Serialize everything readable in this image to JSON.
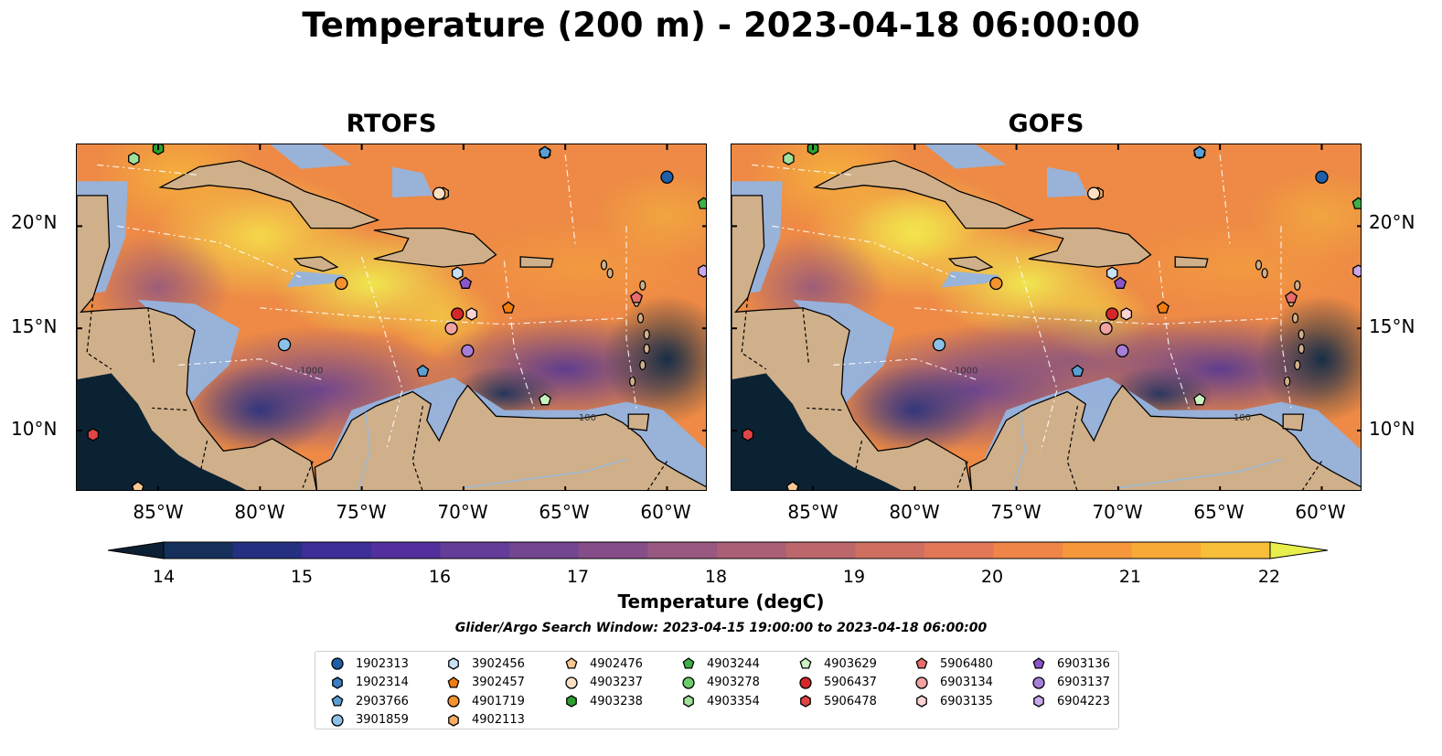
{
  "title": "Temperature (200 m) - 2023-04-18 06:00:00",
  "panels": [
    {
      "id": "rtofs",
      "title": "RTOFS"
    },
    {
      "id": "gofs",
      "title": "GOFS"
    }
  ],
  "lon_ticks": [
    "85°W",
    "80°W",
    "75°W",
    "70°W",
    "65°W",
    "60°W"
  ],
  "lat_ticks": [
    "20°N",
    "15°N",
    "10°N"
  ],
  "map_extent": {
    "lon": [
      -89,
      -58
    ],
    "lat": [
      7,
      24
    ]
  },
  "colorbar": {
    "label": "Temperature (degC)",
    "ticks": [
      "14",
      "15",
      "16",
      "17",
      "18",
      "19",
      "20",
      "21",
      "22"
    ],
    "range": [
      14,
      22
    ],
    "step": 0.5,
    "extend": "both",
    "colors": [
      "#0c1f33",
      "#16305c",
      "#253080",
      "#3c2f98",
      "#522f9c",
      "#633d98",
      "#744590",
      "#864e88",
      "#98577f",
      "#aa5f76",
      "#bc676c",
      "#cf6f62",
      "#e27758",
      "#ef8548",
      "#f6973c",
      "#f8aa37",
      "#f7be3a",
      "#f3d743",
      "#e8ef4c"
    ]
  },
  "search_window": "Glider/Argo Search Window: 2023-04-15 19:00:00 to 2023-04-18 06:00:00",
  "contour_labels": [
    "-1000",
    "-100"
  ],
  "legend": [
    {
      "id": "1902313",
      "marker": "circle",
      "color": "#1f5fa8"
    },
    {
      "id": "1902314",
      "marker": "hexagon",
      "color": "#3b7fc4"
    },
    {
      "id": "2903766",
      "marker": "pentagon",
      "color": "#5a9fd4"
    },
    {
      "id": "3901859",
      "marker": "circle",
      "color": "#8cc2ea"
    },
    {
      "id": "3902456",
      "marker": "hexagon",
      "color": "#c6e2f6"
    },
    {
      "id": "3902457",
      "marker": "pentagon",
      "color": "#f07d10"
    },
    {
      "id": "4901719",
      "marker": "circle",
      "color": "#f3922e"
    },
    {
      "id": "4902113",
      "marker": "hexagon",
      "color": "#f8ad62"
    },
    {
      "id": "4902476",
      "marker": "pentagon",
      "color": "#fbc893"
    },
    {
      "id": "4903237",
      "marker": "circle",
      "color": "#fde0c3"
    },
    {
      "id": "4903238",
      "marker": "hexagon",
      "color": "#2ca02c"
    },
    {
      "id": "4903244",
      "marker": "pentagon",
      "color": "#3fb047"
    },
    {
      "id": "4903278",
      "marker": "circle",
      "color": "#6ccb6c"
    },
    {
      "id": "4903354",
      "marker": "hexagon",
      "color": "#9fe09a"
    },
    {
      "id": "4903629",
      "marker": "pentagon",
      "color": "#c8f2c0"
    },
    {
      "id": "5906437",
      "marker": "circle",
      "color": "#d62728"
    },
    {
      "id": "5906478",
      "marker": "hexagon",
      "color": "#e04545"
    },
    {
      "id": "5906480",
      "marker": "pentagon",
      "color": "#e86d6d"
    },
    {
      "id": "6903134",
      "marker": "circle",
      "color": "#f2a2a2"
    },
    {
      "id": "6903135",
      "marker": "hexagon",
      "color": "#fbd3d3"
    },
    {
      "id": "6903136",
      "marker": "pentagon",
      "color": "#8b55c9"
    },
    {
      "id": "6903137",
      "marker": "circle",
      "color": "#a67fd8"
    },
    {
      "id": "6904223",
      "marker": "hexagon",
      "color": "#c8a8ea"
    }
  ],
  "floats": [
    {
      "id": "1902313",
      "lon": -60.0,
      "lat": 22.4
    },
    {
      "id": "1902314",
      "lon": -66.0,
      "lat": 23.6
    },
    {
      "id": "2903766",
      "lon": -66.0,
      "lat": 23.6
    },
    {
      "id": "3901859",
      "lon": -78.8,
      "lat": 14.2
    },
    {
      "id": "3902456",
      "lon": -70.3,
      "lat": 17.7
    },
    {
      "id": "3902457",
      "lon": -67.8,
      "lat": 16.0
    },
    {
      "id": "4902113",
      "lon": -71.0,
      "lat": 21.6
    },
    {
      "id": "4902476",
      "lon": -86.0,
      "lat": 7.2
    },
    {
      "id": "4903237",
      "lon": -71.2,
      "lat": 21.6
    },
    {
      "id": "4903238",
      "lon": -85.0,
      "lat": 23.8
    },
    {
      "id": "4903244",
      "lon": -58.2,
      "lat": 21.1
    },
    {
      "id": "4903354",
      "lon": -86.2,
      "lat": 23.3
    },
    {
      "id": "4903629",
      "lon": -66.0,
      "lat": 11.5
    },
    {
      "id": "5906437",
      "lon": -70.3,
      "lat": 15.7
    },
    {
      "id": "5906478",
      "lon": -88.2,
      "lat": 9.8
    },
    {
      "id": "6903134",
      "lon": -70.6,
      "lat": 15.0
    },
    {
      "id": "6903135",
      "lon": -69.6,
      "lat": 15.7
    },
    {
      "id": "6903136",
      "lon": -69.9,
      "lat": 17.2
    },
    {
      "id": "6903137",
      "lon": -69.8,
      "lat": 13.9
    },
    {
      "id": "6904223",
      "lon": -58.2,
      "lat": 17.8
    },
    {
      "id": "4901719",
      "lon": -76.0,
      "lat": 17.2
    },
    {
      "id": "2903766",
      "lon": -72.0,
      "lat": 12.9
    },
    {
      "id": "5906480",
      "lon": -61.5,
      "lat": 16.5
    }
  ]
}
